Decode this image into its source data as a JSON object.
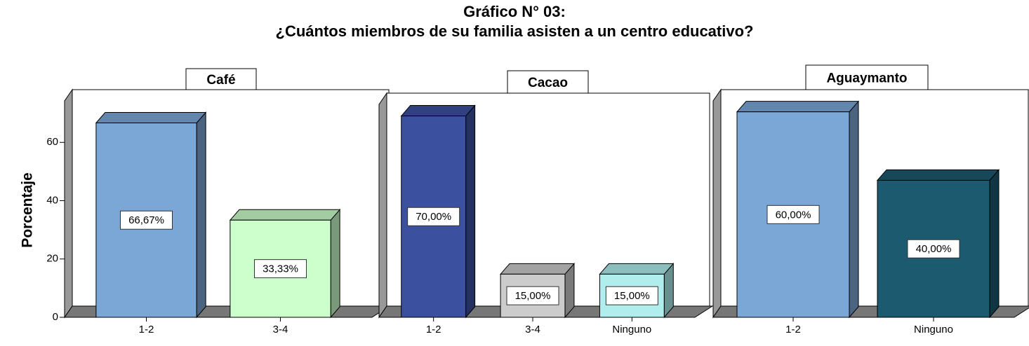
{
  "title": "Gráfico N° 03:",
  "subtitle": "¿Cuántos miembros de su familia asisten a un centro educativo?",
  "chart_data": [
    {
      "type": "bar",
      "title": "Café",
      "ylabel": "Porcentaje",
      "categories": [
        "1-2",
        "3-4"
      ],
      "values": [
        66.67,
        33.33
      ],
      "value_labels": [
        "66,67%",
        "33,33%"
      ],
      "colors": [
        "#7ba7d7",
        "#ccffcc"
      ],
      "ylim": [
        0,
        74
      ],
      "yticks": [
        0,
        20,
        40,
        60
      ]
    },
    {
      "type": "bar",
      "title": "Cacao",
      "categories": [
        "1-2",
        "3-4",
        "Ninguno"
      ],
      "values": [
        70,
        15,
        15
      ],
      "value_labels": [
        "70,00%",
        "15,00%",
        "15,00%"
      ],
      "colors": [
        "#3c50a0",
        "#cccccc",
        "#b0eeee"
      ],
      "ylim": [
        0,
        75
      ]
    },
    {
      "type": "bar",
      "title": "Aguaymanto",
      "categories": [
        "1-2",
        "Ninguno"
      ],
      "values": [
        60,
        40
      ],
      "value_labels": [
        "60,00%",
        "40,00%"
      ],
      "colors": [
        "#7ba7d7",
        "#1c5a70"
      ],
      "ylim": [
        0,
        63
      ]
    }
  ]
}
